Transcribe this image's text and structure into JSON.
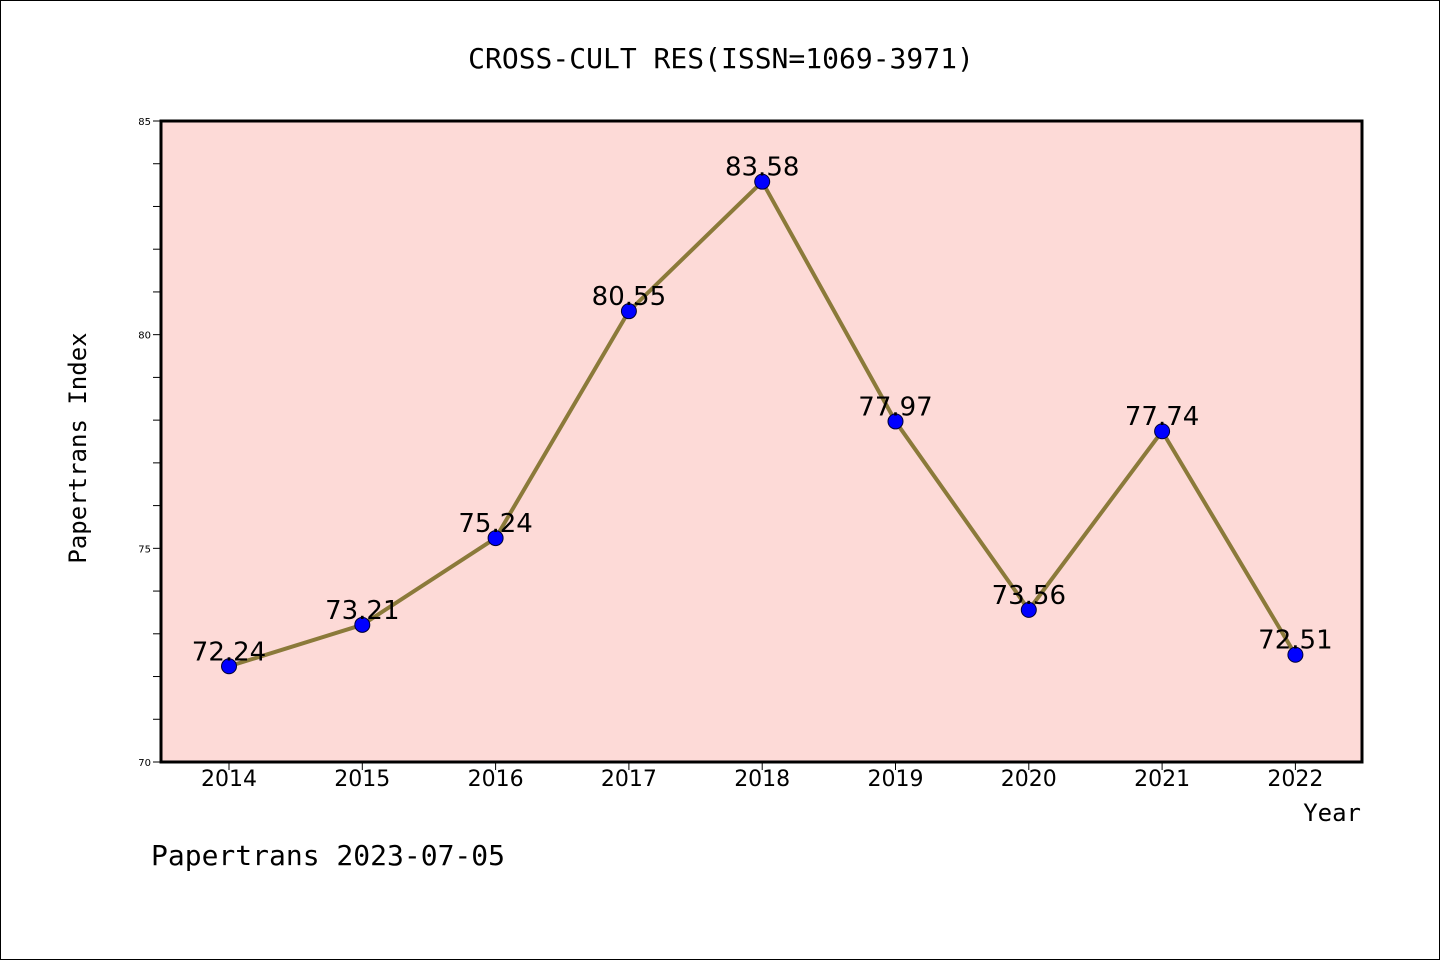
{
  "chart_data": {
    "type": "line",
    "title": "CROSS-CULT RES(ISSN=1069-3971)",
    "xlabel": "Year",
    "ylabel": "Papertrans Index",
    "categories": [
      "2014",
      "2015",
      "2016",
      "2017",
      "2018",
      "2019",
      "2020",
      "2021",
      "2022"
    ],
    "series": [
      {
        "values": [
          72.24,
          73.21,
          75.24,
          80.55,
          83.58,
          77.97,
          73.56,
          77.74,
          72.51
        ],
        "labels": [
          "72.24",
          "73.21",
          "75.24",
          "80.55",
          "83.58",
          "77.97",
          "73.56",
          "77.74",
          "72.51"
        ]
      }
    ],
    "ylim": [
      70,
      85
    ],
    "yticks": [
      70,
      75,
      80,
      85
    ],
    "grid": false,
    "colors": {
      "plot_background": "#fddad7",
      "line": "#8b7a3a",
      "marker": "#0000ff"
    }
  },
  "footer": "Papertrans 2023-07-05"
}
